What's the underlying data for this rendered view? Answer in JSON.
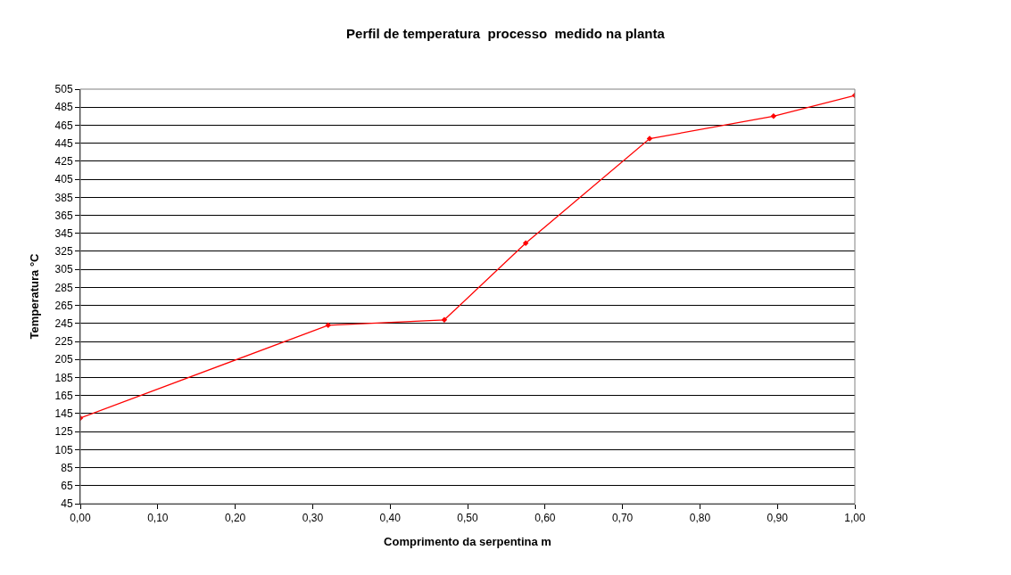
{
  "chart_data": {
    "type": "line",
    "title": "Perfil de temperatura  processo  medido na planta",
    "xlabel": "Comprimento da serpentina m",
    "ylabel": "Temperatura °C",
    "x": [
      0.0,
      0.32,
      0.47,
      0.575,
      0.735,
      0.895,
      1.0
    ],
    "series": [
      {
        "color": "#ff0000",
        "values": [
          140,
          243,
          249,
          334,
          450,
          475,
          498
        ]
      }
    ],
    "xlim": [
      0,
      1
    ],
    "xticks": [
      {
        "value": 0,
        "label": "0,00"
      },
      {
        "value": 0.1,
        "label": "0,10"
      },
      {
        "value": 0.2,
        "label": "0,20"
      },
      {
        "value": 0.3,
        "label": "0,30"
      },
      {
        "value": 0.4,
        "label": "0,40"
      },
      {
        "value": 0.5,
        "label": "0,50"
      },
      {
        "value": 0.6,
        "label": "0,60"
      },
      {
        "value": 0.7,
        "label": "0,70"
      },
      {
        "value": 0.8,
        "label": "0,80"
      },
      {
        "value": 0.9,
        "label": "0,90"
      },
      {
        "value": 1.0,
        "label": "1,00"
      }
    ],
    "ylim": [
      45,
      505
    ],
    "yticks": [
      45,
      65,
      85,
      105,
      125,
      145,
      165,
      185,
      205,
      225,
      245,
      265,
      285,
      305,
      325,
      345,
      365,
      385,
      405,
      425,
      445,
      465,
      485,
      505
    ],
    "grid": "y",
    "marker": "diamond",
    "line_style": "solid"
  }
}
